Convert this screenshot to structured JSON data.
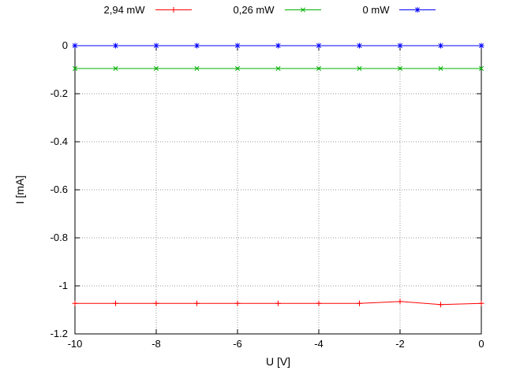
{
  "chart_data": {
    "type": "line",
    "title": "",
    "xlabel": "U [V]",
    "ylabel": "I [mA]",
    "xlim": [
      -10,
      0
    ],
    "ylim": [
      -1.2,
      0
    ],
    "xticks": [
      -10,
      -8,
      -6,
      -4,
      -2,
      0
    ],
    "xtick_labels": [
      "-10",
      "-8",
      "-6",
      "-4",
      "-2",
      "0"
    ],
    "yticks": [
      0,
      -0.2,
      -0.4,
      -0.6,
      -0.8,
      -1,
      -1.2
    ],
    "ytick_labels": [
      "0",
      "-0.2",
      "-0.4",
      "-0.6",
      "-0.8",
      "-1",
      "-1.2"
    ],
    "grid": true,
    "legend_position": "top-center-outside",
    "x": [
      -10,
      -9,
      -8,
      -7,
      -6,
      -5,
      -4,
      -3,
      -2,
      -1,
      0
    ],
    "series": [
      {
        "name": "2,94 mW",
        "color": "#ff0000",
        "marker": "plus",
        "values": [
          -1.073,
          -1.073,
          -1.073,
          -1.073,
          -1.073,
          -1.073,
          -1.073,
          -1.073,
          -1.065,
          -1.078,
          -1.073
        ]
      },
      {
        "name": "0,26 mW",
        "color": "#00b000",
        "marker": "x",
        "values": [
          -0.095,
          -0.095,
          -0.095,
          -0.095,
          -0.095,
          -0.095,
          -0.095,
          -0.095,
          -0.095,
          -0.095,
          -0.095
        ]
      },
      {
        "name": "0 mW",
        "color": "#0000ff",
        "marker": "asterisk",
        "values": [
          0,
          0,
          0,
          0,
          0,
          0,
          0,
          0,
          0,
          0,
          0
        ]
      }
    ]
  }
}
